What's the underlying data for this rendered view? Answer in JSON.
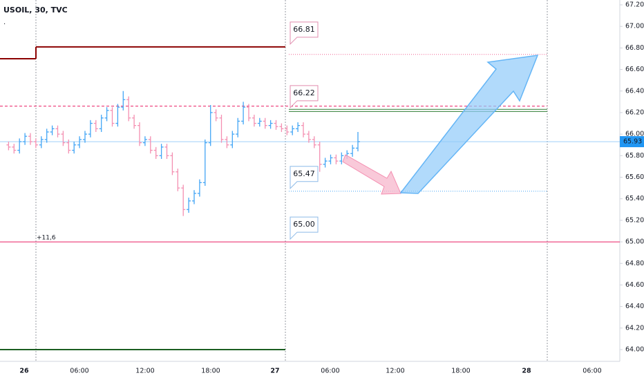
{
  "chart_data": {
    "type": "ohlc",
    "title": "USOIL, 30, TVC",
    "open": [
      65.9,
      65.88,
      65.85,
      65.93,
      65.98,
      65.93,
      65.9,
      65.95,
      66.02,
      66.05,
      66.0,
      65.92,
      65.85,
      65.9,
      65.95,
      66.0,
      66.1,
      66.05,
      66.15,
      66.22,
      66.1,
      66.25,
      66.32,
      66.15,
      66.08,
      65.92,
      65.95,
      65.85,
      65.8,
      65.88,
      65.8,
      65.65,
      65.5,
      65.3,
      65.38,
      65.45,
      65.55,
      65.92,
      66.2,
      66.15,
      65.95,
      65.9,
      66.0,
      66.12,
      66.25,
      66.15,
      66.1,
      66.12,
      66.08,
      66.1,
      66.07,
      66.05,
      66.02,
      66.05,
      66.08,
      66.0,
      65.95,
      65.9,
      65.72,
      65.75,
      65.78,
      65.75,
      65.8,
      65.82,
      65.87
    ],
    "high": [
      65.93,
      65.91,
      65.96,
      66.01,
      66.01,
      65.96,
      65.98,
      66.05,
      66.08,
      66.08,
      66.03,
      65.95,
      65.93,
      65.98,
      66.03,
      66.13,
      66.13,
      66.18,
      66.25,
      66.25,
      66.28,
      66.4,
      66.35,
      66.18,
      66.11,
      65.98,
      65.98,
      65.88,
      65.91,
      65.91,
      65.83,
      65.68,
      65.53,
      65.41,
      65.48,
      65.58,
      65.95,
      66.27,
      66.23,
      66.18,
      65.98,
      66.03,
      66.15,
      66.3,
      66.28,
      66.18,
      66.15,
      66.15,
      66.13,
      66.13,
      66.1,
      66.08,
      66.08,
      66.11,
      66.11,
      66.03,
      65.98,
      65.93,
      65.78,
      65.81,
      65.81,
      65.83,
      65.85,
      65.9,
      66.02
    ],
    "low": [
      65.85,
      65.82,
      65.82,
      65.9,
      65.9,
      65.87,
      65.87,
      65.92,
      65.99,
      65.97,
      65.89,
      65.82,
      65.82,
      65.87,
      65.92,
      65.97,
      66.02,
      66.02,
      66.12,
      66.07,
      66.07,
      66.22,
      66.12,
      66.05,
      65.89,
      65.89,
      65.82,
      65.77,
      65.77,
      65.77,
      65.62,
      65.47,
      65.24,
      65.27,
      65.35,
      65.42,
      65.52,
      65.89,
      66.12,
      65.92,
      65.87,
      65.87,
      65.97,
      66.09,
      66.12,
      66.07,
      66.07,
      66.05,
      66.05,
      66.04,
      66.02,
      65.99,
      65.99,
      66.02,
      65.97,
      65.92,
      65.87,
      65.65,
      65.69,
      65.72,
      65.72,
      65.72,
      65.77,
      65.79,
      65.84
    ],
    "close": [
      65.88,
      65.85,
      65.93,
      65.98,
      65.93,
      65.9,
      65.95,
      66.02,
      66.05,
      66.0,
      65.92,
      65.85,
      65.9,
      65.95,
      66.0,
      66.1,
      66.05,
      66.15,
      66.22,
      66.1,
      66.25,
      66.32,
      66.15,
      66.08,
      65.92,
      65.95,
      65.85,
      65.8,
      65.88,
      65.8,
      65.65,
      65.5,
      65.3,
      65.38,
      65.45,
      65.55,
      65.92,
      66.2,
      66.15,
      65.95,
      65.9,
      66.0,
      66.12,
      66.25,
      66.15,
      66.1,
      66.12,
      66.08,
      66.1,
      66.07,
      66.05,
      66.02,
      66.05,
      66.08,
      66.0,
      65.95,
      65.9,
      65.72,
      65.75,
      65.78,
      65.75,
      65.8,
      65.82,
      65.87,
      65.93
    ],
    "up_color": "#42a5f5",
    "down_color": "#f48fb1",
    "ylim": [
      64.0,
      67.2
    ],
    "yticks": [
      {
        "value": 64.0,
        "label": "64.00"
      },
      {
        "value": 64.2,
        "label": "64.20"
      },
      {
        "value": 64.4,
        "label": "64.40"
      },
      {
        "value": 64.6,
        "label": "64.60"
      },
      {
        "value": 64.8,
        "label": "64.80"
      },
      {
        "value": 65.0,
        "label": "65.00"
      },
      {
        "value": 65.2,
        "label": "65.20"
      },
      {
        "value": 65.4,
        "label": "65.40"
      },
      {
        "value": 65.6,
        "label": "65.60"
      },
      {
        "value": 65.8,
        "label": "65.80"
      },
      {
        "value": 66.0,
        "label": "66.00"
      },
      {
        "value": 66.2,
        "label": "66.20"
      },
      {
        "value": 66.4,
        "label": "66.40"
      },
      {
        "value": 66.6,
        "label": "66.60"
      },
      {
        "value": 66.8,
        "label": "66.80"
      },
      {
        "value": 67.0,
        "label": "67.00"
      },
      {
        "value": 67.2,
        "label": "67.20"
      }
    ],
    "time_labels": [
      "26",
      "06:00",
      "12:00",
      "18:00",
      "27",
      "06:00",
      "12:00",
      "18:00",
      "28",
      "06:00"
    ],
    "last_price": 65.93,
    "bar_change_label": "+11,6",
    "levels": [
      {
        "value": 66.7,
        "color": "#8b0000"
      },
      {
        "value": 66.81,
        "color": "#8b0000"
      },
      {
        "value": 64.0,
        "color": "#1b5e20"
      },
      {
        "value": 66.26,
        "color": "#e91e63"
      },
      {
        "value": 65.0,
        "color": "#e91e63"
      },
      {
        "value": 66.74,
        "color": "#f06292"
      },
      {
        "value": 66.23,
        "color": "#2e7d32"
      },
      {
        "value": 66.21,
        "color": "#2e7d32"
      },
      {
        "value": 65.47,
        "color": "#42a5f5"
      }
    ],
    "callouts": [
      {
        "value": 66.81,
        "label": "66.81",
        "color": "#c2185b"
      },
      {
        "value": 66.22,
        "label": "66.22",
        "color": "#c2185b"
      },
      {
        "value": 65.47,
        "label": "65.47",
        "color": "#1976d2"
      },
      {
        "value": 65.0,
        "label": "65.00",
        "color": "#1976d2"
      }
    ]
  }
}
